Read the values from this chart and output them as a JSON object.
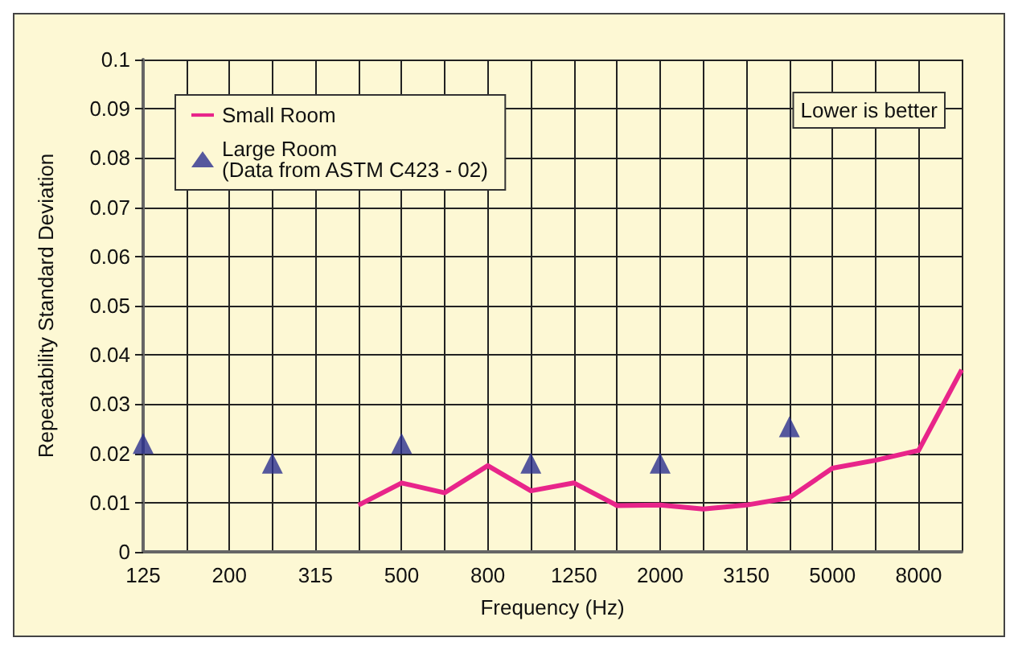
{
  "chart_data": {
    "type": "line",
    "xlabel": "Frequency (Hz)",
    "ylabel": "Repeatability Standard Deviation",
    "categories": [
      "125",
      null,
      "200",
      null,
      "315",
      null,
      "500",
      null,
      "800",
      null,
      "1250",
      null,
      "2000",
      null,
      "3150",
      null,
      "5000",
      null,
      "8000",
      null
    ],
    "series": [
      {
        "name": "Small Room",
        "color": "#e8258a",
        "marker": "none",
        "values": [
          null,
          null,
          null,
          null,
          null,
          0.0095,
          0.014,
          0.012,
          0.0175,
          0.0124,
          0.014,
          0.0094,
          0.0095,
          0.0087,
          0.0095,
          0.011,
          0.017,
          0.0186,
          0.0206,
          0.037
        ]
      },
      {
        "name": "Large Room\n(Data from ASTM C423 - 02)",
        "type": "scatter",
        "color": "#2b2f8f",
        "marker": "triangle",
        "values": [
          0.022,
          null,
          null,
          0.018,
          null,
          null,
          0.022,
          null,
          null,
          0.018,
          null,
          null,
          0.018,
          null,
          null,
          0.0254,
          null,
          null,
          null,
          null
        ]
      }
    ],
    "ylim": [
      0,
      0.1
    ],
    "yticks": [
      0,
      0.01,
      0.02,
      0.03,
      0.04,
      0.05,
      0.06,
      0.07,
      0.08,
      0.09,
      0.1
    ],
    "grid": true,
    "legend": "top left",
    "annotations": [
      "Lower is better"
    ]
  }
}
